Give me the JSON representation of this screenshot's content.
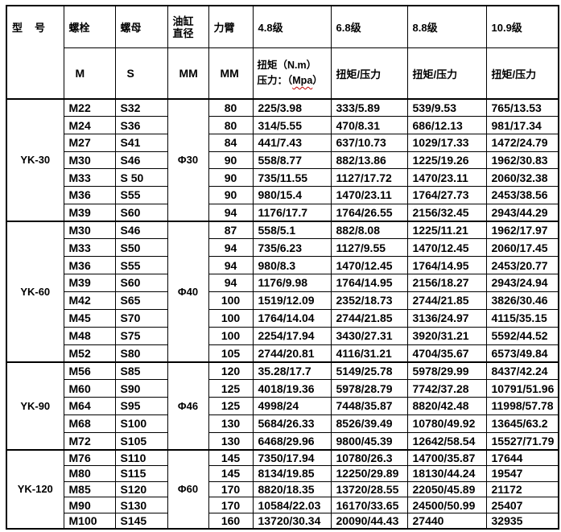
{
  "colors": {
    "background": "#ffffff",
    "text": "#000000",
    "grid_lines": "#000000",
    "spellcheck_underline": "#c00000"
  },
  "table": {
    "header": {
      "model": "型　号",
      "bolt": "螺栓",
      "nut": "螺母",
      "cylinder_line1": "油缸",
      "cylinder_line2": "直径",
      "arm": "力臂",
      "grades": [
        "4.8级",
        "6.8级",
        "8.8级",
        "10.9级"
      ],
      "units": {
        "bolt": "M",
        "nut": "S",
        "cylinder": "MM",
        "arm": "MM"
      },
      "grade48_torque": "扭矩（N.m）",
      "grade48_pressure_prefix": "压力：（",
      "grade48_pressure_unit": "Mpa",
      "grade48_pressure_suffix": "）",
      "torque_pressure_label": "扭矩/压力"
    },
    "groups": [
      {
        "model": "YK-30",
        "cylinder": "Φ30",
        "rows": [
          {
            "bolt": "M22",
            "nut": "S32",
            "arm": "80",
            "values": [
              "225/3.98",
              "333/5.89",
              "539/9.53",
              "765/13.53"
            ]
          },
          {
            "bolt": "M24",
            "nut": "S36",
            "arm": "80",
            "values": [
              "314/5.55",
              "470/8.31",
              "686/12.13",
              "981/17.34"
            ]
          },
          {
            "bolt": "M27",
            "nut": "S41",
            "arm": "84",
            "values": [
              "441/7.43",
              "637/10.73",
              "1029/17.33",
              "1472/24.79"
            ]
          },
          {
            "bolt": "M30",
            "nut": "S46",
            "arm": "90",
            "values": [
              "558/8.77",
              "882/13.86",
              "1225/19.26",
              "1962/30.83"
            ]
          },
          {
            "bolt": "M33",
            "nut": "S 50",
            "arm": "90",
            "values": [
              "735/11.55",
              "1127/17.72",
              "1470/23.11",
              "2060/32.38"
            ]
          },
          {
            "bolt": "M36",
            "nut": "S55",
            "arm": "90",
            "values": [
              "980/15.4",
              "1470/23.11",
              "1764/27.73",
              "2453/38.56"
            ]
          },
          {
            "bolt": "M39",
            "nut": "S60",
            "arm": "94",
            "values": [
              "1176/17.7",
              "1764/26.55",
              "2156/32.45",
              "2943/44.29"
            ]
          }
        ]
      },
      {
        "model": "YK-60",
        "cylinder": "Φ40",
        "rows": [
          {
            "bolt": "M30",
            "nut": "S46",
            "arm": "87",
            "values": [
              "558/5.1",
              "882/8.08",
              "1225/11.21",
              "1962/17.97"
            ]
          },
          {
            "bolt": "M33",
            "nut": "S50",
            "arm": "94",
            "values": [
              "735/6.23",
              "1127/9.55",
              "1470/12.45",
              "2060/17.45"
            ]
          },
          {
            "bolt": "M36",
            "nut": "S55",
            "arm": "94",
            "values": [
              "980/8.3",
              "1470/12.45",
              "1764/14.95",
              "2453/20.77"
            ]
          },
          {
            "bolt": "M39",
            "nut": "S60",
            "arm": "94",
            "values": [
              "1176/9.98",
              "1764/14.95",
              "2156/18.27",
              "2943/24.94"
            ]
          },
          {
            "bolt": "M42",
            "nut": "S65",
            "arm": "100",
            "values": [
              "1519/12.09",
              "2352/18.73",
              "2744/21.85",
              "3826/30.46"
            ]
          },
          {
            "bolt": "M45",
            "nut": "S70",
            "arm": "100",
            "values": [
              "1764/14.04",
              "2744/21.85",
              "3136/24.97",
              "4115/35.15"
            ]
          },
          {
            "bolt": "M48",
            "nut": "S75",
            "arm": "100",
            "values": [
              "2254/17.94",
              "3430/27.31",
              "3920/31.21",
              "5592/44.52"
            ]
          },
          {
            "bolt": "M52",
            "nut": "S80",
            "arm": "105",
            "values": [
              "2744/20.81",
              "4116/31.21",
              "4704/35.67",
              "6573/49.84"
            ]
          }
        ]
      },
      {
        "model": "YK-90",
        "cylinder": "Φ46",
        "rows": [
          {
            "bolt": "M56",
            "nut": "S85",
            "arm": "120",
            "values": [
              "35.28/17.7",
              "5149/25.78",
              "5978/29.99",
              "8437/42.24"
            ]
          },
          {
            "bolt": "M60",
            "nut": "S90",
            "arm": "125",
            "values": [
              "4018/19.36",
              "5978/28.79",
              "7742/37.28",
              "10791/51.96"
            ]
          },
          {
            "bolt": "M64",
            "nut": "S95",
            "arm": "125",
            "values": [
              "4998/24",
              "7448/35.87",
              "8820/42.48",
              "11998/57.78"
            ]
          },
          {
            "bolt": "M68",
            "nut": "S100",
            "arm": "130",
            "values": [
              "5684/26.33",
              "8526/39.49",
              "10780/49.92",
              "13645/63.2"
            ]
          },
          {
            "bolt": "M72",
            "nut": "S105",
            "arm": "130",
            "values": [
              "6468/29.96",
              "9800/45.39",
              "12642/58.54",
              "15527/71.79"
            ]
          }
        ]
      },
      {
        "model": "YK-120",
        "cylinder": "Φ60",
        "rows": [
          {
            "bolt": "M76",
            "nut": "S110",
            "arm": "145",
            "values": [
              "7350/17.94",
              "10780/26.3",
              "14700/35.87",
              "17644"
            ]
          },
          {
            "bolt": "M80",
            "nut": "S115",
            "arm": "145",
            "values": [
              "8134/19.85",
              "12250/29.89",
              "18130/44.24",
              "19547"
            ]
          },
          {
            "bolt": "M85",
            "nut": "S120",
            "arm": "170",
            "values": [
              "8820/18.35",
              "13720/28.55",
              "22050/45.89",
              "21172"
            ]
          },
          {
            "bolt": "M90",
            "nut": "S130",
            "arm": "170",
            "values": [
              "10584/22.03",
              "16170/33.65",
              "24500/50.99",
              "25407"
            ]
          },
          {
            "bolt": "M100",
            "nut": "S145",
            "arm": "160",
            "values": [
              "13720/30.34",
              "20090/44.43",
              "27440",
              "32935"
            ]
          }
        ]
      }
    ]
  }
}
